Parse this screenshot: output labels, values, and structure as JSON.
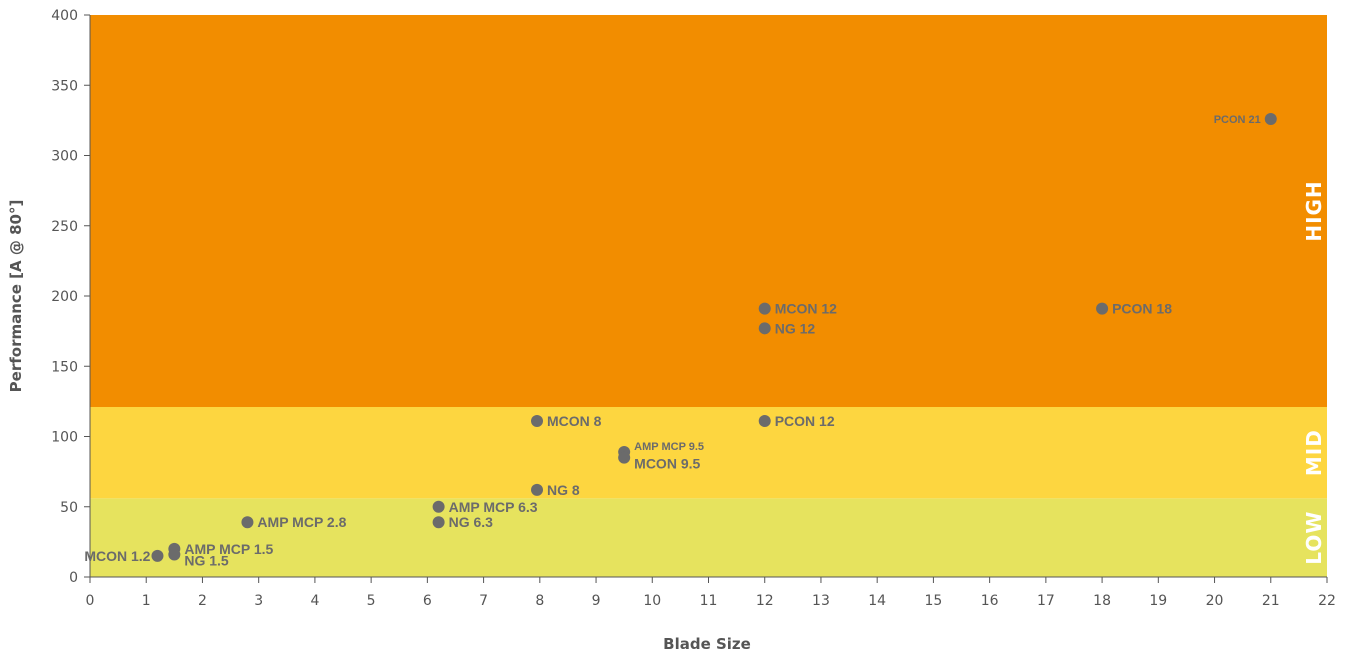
{
  "chart_data": {
    "type": "scatter",
    "title": "",
    "xlabel": "Blade Size",
    "ylabel": "Performance [A @ 80°]",
    "xlim": [
      0,
      22
    ],
    "ylim": [
      0,
      400
    ],
    "x_ticks": [
      0,
      1,
      2,
      3,
      4,
      5,
      6,
      7,
      8,
      9,
      10,
      11,
      12,
      13,
      14,
      15,
      16,
      17,
      18,
      19,
      20,
      21,
      22
    ],
    "y_ticks": [
      0,
      50,
      100,
      150,
      200,
      250,
      300,
      350,
      400
    ],
    "grid": false,
    "bands": [
      {
        "label": "LOW",
        "from": 0,
        "to": 56,
        "color": "#e6e35e"
      },
      {
        "label": "MID",
        "from": 56,
        "to": 121,
        "color": "#fdd640"
      },
      {
        "label": "HIGH",
        "from": 121,
        "to": 400,
        "color": "#f28d00"
      }
    ],
    "point_color": "#6b6b6b",
    "points": [
      {
        "label": "MCON 1.2",
        "x": 1.2,
        "y": 15,
        "pos": "left"
      },
      {
        "label": "AMP MCP 1.5",
        "x": 1.5,
        "y": 20,
        "pos": "right"
      },
      {
        "label": "NG 1.5",
        "x": 1.5,
        "y": 16,
        "pos": "right-low"
      },
      {
        "label": "AMP MCP 2.8",
        "x": 2.8,
        "y": 39,
        "pos": "right"
      },
      {
        "label": "AMP MCP 6.3",
        "x": 6.2,
        "y": 50,
        "pos": "right"
      },
      {
        "label": "NG 6.3",
        "x": 6.2,
        "y": 39,
        "pos": "right"
      },
      {
        "label": "NG 8",
        "x": 7.95,
        "y": 62,
        "pos": "right"
      },
      {
        "label": "MCON 8",
        "x": 7.95,
        "y": 111,
        "pos": "right"
      },
      {
        "label": "AMP MCP 9.5",
        "x": 9.5,
        "y": 89,
        "pos": "right-small"
      },
      {
        "label": "MCON 9.5",
        "x": 9.5,
        "y": 85,
        "pos": "right-low"
      },
      {
        "label": "PCON 12",
        "x": 12,
        "y": 111,
        "pos": "right"
      },
      {
        "label": "NG 12",
        "x": 12,
        "y": 177,
        "pos": "right"
      },
      {
        "label": "MCON 12",
        "x": 12,
        "y": 191,
        "pos": "right"
      },
      {
        "label": "PCON 18",
        "x": 18,
        "y": 191,
        "pos": "right"
      },
      {
        "label": "PCON 21",
        "x": 21,
        "y": 326,
        "pos": "left-small"
      }
    ]
  }
}
